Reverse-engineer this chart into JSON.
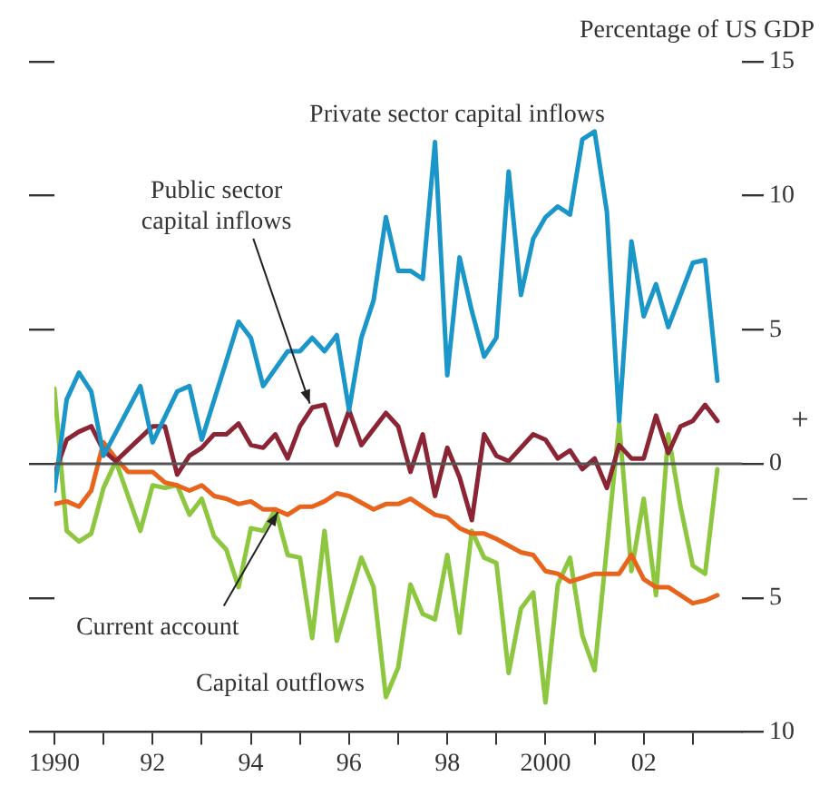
{
  "chart_data": {
    "type": "line",
    "ylabel": "Percentage of US GDP",
    "xlim": [
      1990,
      2004
    ],
    "xticks": [
      {
        "value": 1990,
        "label": "1990"
      },
      {
        "value": 1991,
        "label": null
      },
      {
        "value": 1992,
        "label": "92"
      },
      {
        "value": 1993,
        "label": null
      },
      {
        "value": 1994,
        "label": "94"
      },
      {
        "value": 1995,
        "label": null
      },
      {
        "value": 1996,
        "label": "96"
      },
      {
        "value": 1997,
        "label": null
      },
      {
        "value": 1998,
        "label": "98"
      },
      {
        "value": 1999,
        "label": null
      },
      {
        "value": 2000,
        "label": "2000"
      },
      {
        "value": 2001,
        "label": null
      },
      {
        "value": 2002,
        "label": "02"
      },
      {
        "value": 2003,
        "label": null
      }
    ],
    "ylim": [
      -10,
      15
    ],
    "yticks": [
      15,
      10,
      5,
      0,
      {
        "value": -5,
        "label": "5"
      },
      {
        "value": -10,
        "label": "10"
      }
    ],
    "grid": false,
    "legend": false,
    "marker": "none",
    "line_style": "solid",
    "ref_lines": [
      {
        "axis": "y",
        "value": 0,
        "color": "#555555"
      }
    ],
    "annotations": [
      "+",
      "−"
    ],
    "series": [
      {
        "name": "Private sector capital inflows",
        "color": "#1a96c8",
        "x": [
          1990.0,
          1990.25,
          1990.5,
          1990.75,
          1991.0,
          1991.75,
          1992.0,
          1992.5,
          1992.75,
          1993.0,
          1993.75,
          1994.0,
          1994.25,
          1994.75,
          1995.0,
          1995.25,
          1995.5,
          1995.75,
          1996.0,
          1996.25,
          1996.5,
          1996.75,
          1997.0,
          1997.25,
          1997.5,
          1997.75,
          1998.0,
          1998.25,
          1998.5,
          1998.75,
          1999.0,
          1999.25,
          1999.5,
          1999.75,
          2000.0,
          2000.25,
          2000.5,
          2000.75,
          2001.0,
          2001.25,
          2001.5,
          2001.75,
          2002.0,
          2002.25,
          2002.5,
          2003.0,
          2003.25,
          2003.5
        ],
        "values": [
          -1.0,
          2.4,
          3.4,
          2.7,
          0.3,
          2.9,
          0.8,
          2.7,
          2.9,
          0.9,
          5.3,
          4.7,
          2.9,
          4.2,
          4.2,
          4.7,
          4.2,
          4.8,
          2.0,
          4.7,
          6.1,
          9.2,
          7.2,
          7.2,
          6.9,
          12.0,
          3.3,
          7.7,
          5.7,
          4.0,
          4.7,
          10.9,
          6.3,
          8.4,
          9.2,
          9.6,
          9.3,
          12.1,
          12.4,
          9.4,
          1.6,
          8.3,
          5.5,
          6.7,
          5.1,
          7.5,
          7.6,
          3.1
        ]
      },
      {
        "name": "Public sector capital inflows",
        "color": "#8b2535",
        "x": [
          1990.0,
          1990.25,
          1990.5,
          1990.75,
          1991.0,
          1991.25,
          1992.0,
          1992.25,
          1992.5,
          1992.75,
          1993.0,
          1993.25,
          1993.5,
          1993.75,
          1994.0,
          1994.25,
          1994.5,
          1994.75,
          1995.0,
          1995.25,
          1995.5,
          1995.75,
          1996.0,
          1996.25,
          1996.75,
          1997.0,
          1997.25,
          1997.5,
          1997.75,
          1998.0,
          1998.25,
          1998.5,
          1998.75,
          1999.0,
          1999.25,
          1999.75,
          2000.0,
          2000.25,
          2000.5,
          2000.75,
          2001.0,
          2001.25,
          2001.5,
          2001.75,
          2002.0,
          2002.25,
          2002.5,
          2002.75,
          2003.0,
          2003.25,
          2003.5
        ],
        "values": [
          -0.4,
          0.9,
          1.2,
          1.4,
          0.5,
          0.1,
          1.4,
          1.4,
          -0.4,
          0.3,
          0.6,
          1.1,
          1.1,
          1.5,
          0.7,
          0.6,
          1.1,
          0.2,
          1.4,
          2.1,
          2.2,
          0.7,
          2.0,
          0.7,
          1.9,
          1.4,
          -0.3,
          1.1,
          -1.2,
          0.6,
          -0.5,
          -2.1,
          1.1,
          0.3,
          0.1,
          1.1,
          0.9,
          0.2,
          0.5,
          -0.2,
          0.2,
          -0.9,
          0.7,
          0.2,
          0.2,
          1.8,
          0.4,
          1.4,
          1.6,
          2.2,
          1.6
        ]
      },
      {
        "name": "Current account",
        "color": "#e8641c",
        "x": [
          1990.0,
          1990.25,
          1990.5,
          1990.75,
          1991.0,
          1991.25,
          1991.5,
          1992.0,
          1992.25,
          1992.5,
          1992.75,
          1993.0,
          1993.25,
          1993.5,
          1993.75,
          1994.0,
          1994.25,
          1994.5,
          1994.75,
          1995.0,
          1995.25,
          1995.5,
          1995.75,
          1996.0,
          1996.5,
          1996.75,
          1997.0,
          1997.25,
          1997.5,
          1997.75,
          1998.0,
          1998.25,
          1998.5,
          1998.75,
          1999.0,
          1999.5,
          1999.75,
          2000.0,
          2000.25,
          2000.5,
          2001.0,
          2001.25,
          2001.5,
          2001.75,
          2002.0,
          2002.25,
          2002.5,
          2003.0,
          2003.25,
          2003.5
        ],
        "values": [
          -1.5,
          -1.4,
          -1.6,
          -1.0,
          0.8,
          0.2,
          -0.3,
          -0.3,
          -0.7,
          -0.8,
          -1.0,
          -0.8,
          -1.2,
          -1.3,
          -1.5,
          -1.4,
          -1.7,
          -1.7,
          -1.9,
          -1.6,
          -1.6,
          -1.4,
          -1.1,
          -1.2,
          -1.7,
          -1.5,
          -1.5,
          -1.3,
          -1.6,
          -1.9,
          -2.0,
          -2.4,
          -2.6,
          -2.6,
          -2.8,
          -3.3,
          -3.4,
          -4.0,
          -4.1,
          -4.4,
          -4.1,
          -4.1,
          -4.1,
          -3.4,
          -4.3,
          -4.6,
          -4.6,
          -5.2,
          -5.1,
          -4.9
        ]
      },
      {
        "name": "Capital outflows",
        "color": "#8dc63f",
        "x": [
          1990.0,
          1990.25,
          1990.5,
          1990.75,
          1991.0,
          1991.25,
          1991.5,
          1991.75,
          1992.0,
          1992.25,
          1992.5,
          1992.75,
          1993.0,
          1993.25,
          1993.5,
          1993.75,
          1994.0,
          1994.25,
          1994.5,
          1994.75,
          1995.0,
          1995.25,
          1995.5,
          1995.75,
          1996.25,
          1996.5,
          1996.75,
          1997.0,
          1997.25,
          1997.5,
          1997.75,
          1998.0,
          1998.25,
          1998.5,
          1998.75,
          1999.0,
          1999.25,
          1999.5,
          1999.75,
          2000.0,
          2000.25,
          2000.5,
          2000.75,
          2001.0,
          2001.5,
          2001.75,
          2002.0,
          2002.25,
          2002.5,
          2002.75,
          2003.0,
          2003.25,
          2003.5
        ],
        "values": [
          2.8,
          -2.5,
          -2.9,
          -2.6,
          -0.9,
          0.1,
          -1.2,
          -2.5,
          -0.8,
          -0.9,
          -0.8,
          -1.9,
          -1.3,
          -2.7,
          -3.2,
          -4.6,
          -2.4,
          -2.5,
          -1.7,
          -3.4,
          -3.5,
          -6.5,
          -2.5,
          -6.6,
          -3.5,
          -4.6,
          -8.7,
          -7.6,
          -4.5,
          -5.6,
          -5.8,
          -3.4,
          -6.3,
          -2.5,
          -3.5,
          -3.7,
          -7.8,
          -5.4,
          -4.8,
          -8.9,
          -4.5,
          -3.5,
          -6.4,
          -7.7,
          1.5,
          -4.0,
          -1.3,
          -4.9,
          1.1,
          -1.6,
          -3.8,
          -4.1,
          -0.2
        ]
      }
    ]
  }
}
